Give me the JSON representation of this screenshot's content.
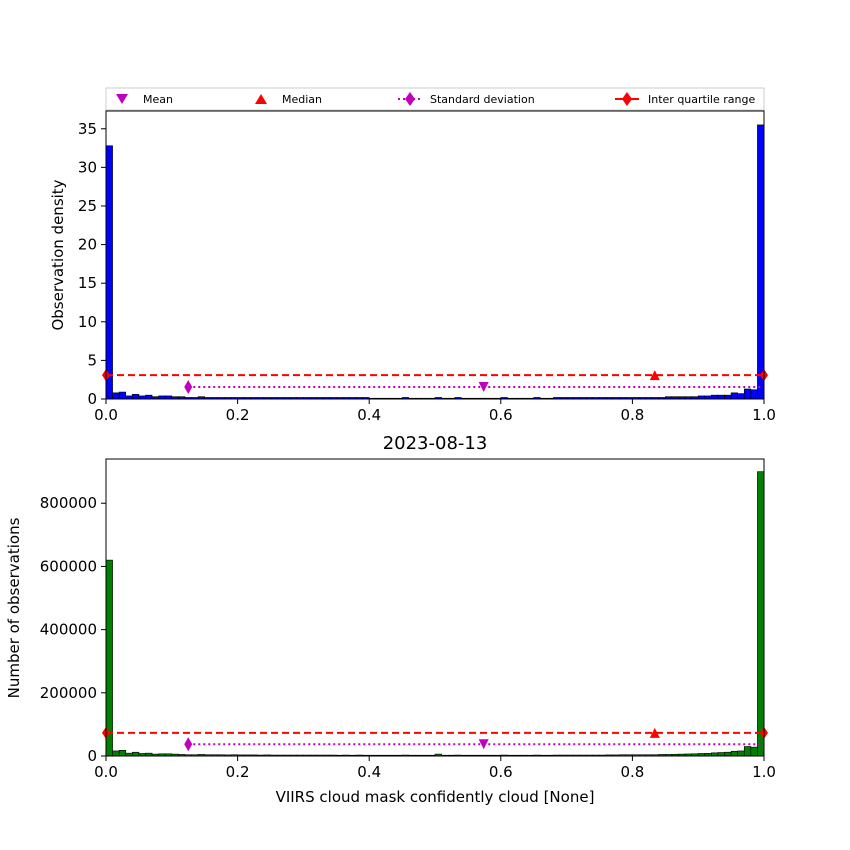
{
  "figure": {
    "title": "2023-08-13",
    "legend": {
      "placement": "top",
      "entries": [
        {
          "label": "Mean",
          "marker": "triangle-down",
          "color": "#bf00bf"
        },
        {
          "label": "Median",
          "marker": "triangle-up",
          "color": "#ff0000"
        },
        {
          "label": "Standard deviation",
          "marker": "diamond",
          "line": "dotted",
          "color": "#bf00bf"
        },
        {
          "label": "Inter quartile range",
          "marker": "diamond",
          "line": "solid",
          "color": "#ff0000"
        }
      ]
    }
  },
  "chart_data": [
    {
      "type": "bar",
      "subtype": "histogram",
      "ylabel": "Observation density",
      "xlabel": "",
      "xlim": [
        0,
        1
      ],
      "ylim": [
        0,
        37.3
      ],
      "xticks": [
        "0.0",
        "0.2",
        "0.4",
        "0.6",
        "0.8",
        "1.0"
      ],
      "yticks": [
        "0",
        "5",
        "10",
        "15",
        "20",
        "25",
        "30",
        "35"
      ],
      "ytick_values": [
        0,
        5,
        10,
        15,
        20,
        25,
        30,
        35
      ],
      "bar_color": "#0000ff",
      "bin_width": 0.01,
      "values": [
        32.8,
        0.8,
        0.9,
        0.4,
        0.6,
        0.4,
        0.5,
        0.3,
        0.4,
        0.4,
        0.3,
        0.3,
        0.2,
        0.2,
        0.3,
        0.2,
        0.2,
        0.2,
        0.2,
        0.2,
        0.2,
        0.2,
        0.2,
        0.2,
        0.2,
        0.2,
        0.2,
        0.2,
        0.2,
        0.2,
        0.2,
        0.2,
        0.2,
        0.2,
        0.2,
        0.2,
        0.2,
        0.2,
        0.2,
        0.2,
        0.1,
        0.1,
        0.1,
        0.1,
        0.1,
        0.2,
        0.1,
        0.1,
        0.1,
        0.1,
        0.2,
        0.1,
        0.1,
        0.2,
        0.1,
        0.1,
        0.1,
        0.1,
        0.1,
        0.1,
        0.2,
        0.1,
        0.1,
        0.1,
        0.1,
        0.2,
        0.1,
        0.1,
        0.2,
        0.2,
        0.2,
        0.2,
        0.2,
        0.2,
        0.2,
        0.2,
        0.2,
        0.2,
        0.2,
        0.2,
        0.2,
        0.2,
        0.2,
        0.2,
        0.2,
        0.3,
        0.3,
        0.3,
        0.3,
        0.3,
        0.4,
        0.4,
        0.5,
        0.5,
        0.5,
        0.8,
        0.7,
        1.3,
        1.2,
        35.5
      ],
      "mean": {
        "x": 0.574,
        "y": 1.55
      },
      "median": {
        "x": 0.834,
        "y": 3.1
      },
      "std": {
        "x": [
          0.125,
          0.999
        ],
        "y": 1.55
      },
      "iqr": {
        "x": [
          0.0,
          1.0
        ],
        "y": 3.1
      }
    },
    {
      "type": "bar",
      "subtype": "histogram",
      "ylabel": "Number of observations",
      "xlabel": "VIIRS cloud mask confidently cloud [None]",
      "xlim": [
        0,
        1
      ],
      "ylim": [
        0,
        940000
      ],
      "xticks": [
        "0.0",
        "0.2",
        "0.4",
        "0.6",
        "0.8",
        "1.0"
      ],
      "yticks": [
        "0",
        "200000",
        "400000",
        "600000",
        "800000"
      ],
      "ytick_values": [
        0,
        200000,
        400000,
        600000,
        800000
      ],
      "bar_color": "#008000",
      "bin_width": 0.01,
      "values": [
        620000,
        16000,
        18000,
        9000,
        12000,
        8000,
        9000,
        6000,
        7000,
        7000,
        6000,
        5000,
        4000,
        4000,
        5000,
        4000,
        4000,
        4000,
        3500,
        4000,
        3500,
        3500,
        3500,
        3000,
        3500,
        3000,
        3000,
        3000,
        3000,
        3000,
        3000,
        3000,
        3000,
        3000,
        3000,
        2500,
        3000,
        2500,
        3000,
        2500,
        2500,
        2500,
        2500,
        2500,
        2500,
        3000,
        2500,
        2500,
        2500,
        2500,
        6000,
        2500,
        2500,
        3000,
        2500,
        2500,
        2500,
        2500,
        2500,
        2500,
        3000,
        2500,
        2500,
        2500,
        2500,
        3000,
        2500,
        2500,
        3000,
        3000,
        3000,
        3000,
        3000,
        3000,
        3000,
        3000,
        3500,
        3500,
        4000,
        4000,
        4000,
        4000,
        4000,
        4000,
        5000,
        5000,
        5500,
        6000,
        6500,
        7000,
        8000,
        8500,
        10000,
        11000,
        12000,
        15000,
        16000,
        30000,
        28000,
        900000
      ],
      "mean": {
        "x": 0.574,
        "y": 37000
      },
      "median": {
        "x": 0.834,
        "y": 73000
      },
      "std": {
        "x": [
          0.125,
          0.999
        ],
        "y": 37000
      },
      "iqr": {
        "x": [
          0.0,
          1.0
        ],
        "y": 73000
      }
    }
  ]
}
